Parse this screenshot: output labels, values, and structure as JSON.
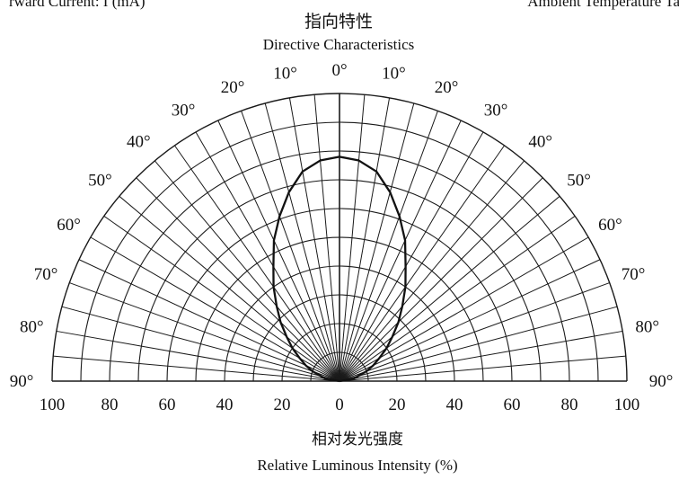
{
  "header": {
    "left_fragment": "rward Current: I (mA)",
    "right_fragment": "Ambient Temperature Ta"
  },
  "chart_data": {
    "type": "polar",
    "title_cn": "指向特性",
    "title_en": "Directive Characteristics",
    "xlabel_cn": "相对发光强度",
    "xlabel_en": "Relative Luminous Intensity (%)",
    "angle_tick_labels_left": [
      "0°",
      "10°",
      "20°",
      "30°",
      "40°",
      "50°",
      "60°",
      "70°",
      "80°",
      "90°"
    ],
    "angle_tick_labels_right": [
      "10°",
      "20°",
      "30°",
      "40°",
      "50°",
      "60°",
      "70°",
      "80°",
      "90°"
    ],
    "radial_tick_labels_left": [
      "100",
      "80",
      "60",
      "40",
      "20"
    ],
    "radial_tick_labels_center": "0",
    "radial_tick_labels_right": [
      "20",
      "40",
      "60",
      "80",
      "100"
    ],
    "radial_range": [
      0,
      100
    ],
    "radial_circles": [
      10,
      20,
      30,
      40,
      50,
      60,
      70,
      80,
      90,
      100
    ],
    "angle_step_deg": 5,
    "angle_range_deg": [
      -90,
      90
    ],
    "series": [
      {
        "angles_deg": [
          0,
          5,
          10,
          15,
          20,
          25,
          30,
          35,
          40,
          45,
          50,
          55,
          60,
          65,
          70,
          80,
          90
        ],
        "values": [
          78,
          77,
          74,
          68,
          61,
          54,
          46,
          40,
          34,
          29,
          24,
          20,
          16,
          13,
          10,
          5,
          0
        ]
      }
    ]
  }
}
